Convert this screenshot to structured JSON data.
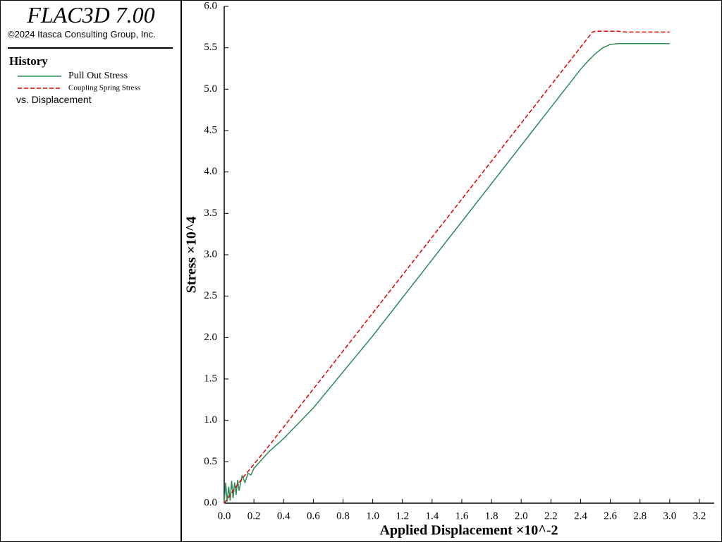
{
  "header": {
    "title": "FLAC3D 7.00",
    "copyright": "©2024 Itasca Consulting Group, Inc.",
    "section": "History",
    "footer": "vs. Displacement"
  },
  "chart_data": {
    "type": "line",
    "x_label": "Applied Displacement ×10^-2",
    "y_label": "Stress ×10^4",
    "xlim": [
      0,
      3.3
    ],
    "ylim": [
      0,
      6
    ],
    "xticks": [
      {
        "value": 0,
        "label": "0.0"
      },
      0.2,
      0.4,
      0.6,
      0.8,
      {
        "value": 1,
        "label": "1.0"
      },
      1.2,
      1.4,
      1.6,
      1.8,
      {
        "value": 2,
        "label": "2.0"
      },
      2.2,
      2.4,
      2.6,
      2.8,
      {
        "value": 3,
        "label": "3.0"
      },
      3.2
    ],
    "yticks": [
      {
        "value": 0,
        "label": "0.0"
      },
      0.5,
      {
        "value": 1,
        "label": "1.0"
      },
      1.5,
      {
        "value": 2,
        "label": "2.0"
      },
      2.5,
      {
        "value": 3,
        "label": "3.0"
      },
      3.5,
      {
        "value": 4,
        "label": "4.0"
      },
      4.5,
      {
        "value": 5,
        "label": "5.0"
      },
      5.5,
      {
        "value": 6,
        "label": "6.0"
      }
    ],
    "series": [
      {
        "name": "Pull Out Stress",
        "color": "#2e8b57",
        "dashed": false,
        "x": [
          0,
          0.01,
          0.02,
          0.03,
          0.04,
          0.05,
          0.06,
          0.07,
          0.08,
          0.09,
          0.1,
          0.12,
          0.14,
          0.16,
          0.18,
          0.2,
          0.25,
          0.3,
          0.4,
          0.6,
          1.0,
          2.0,
          2.4,
          2.45,
          2.5,
          2.55,
          2.6,
          2.65,
          3.0
        ],
        "values": [
          0,
          0.25,
          0.02,
          0.2,
          0.03,
          0.27,
          0.06,
          0.25,
          0.1,
          0.28,
          0.15,
          0.33,
          0.25,
          0.36,
          0.34,
          0.42,
          0.52,
          0.62,
          0.78,
          1.15,
          2.02,
          4.32,
          5.24,
          5.34,
          5.43,
          5.5,
          5.54,
          5.55,
          5.55
        ]
      },
      {
        "name": "Coupling Spring Stress",
        "color": "#e00000",
        "dashed": true,
        "x": [
          0,
          0.1,
          0.2,
          0.3,
          2.48,
          2.5,
          2.65,
          2.7,
          3.0
        ],
        "values": [
          0,
          0.25,
          0.47,
          0.69,
          5.69,
          5.7,
          5.7,
          5.69,
          5.69
        ]
      }
    ]
  }
}
